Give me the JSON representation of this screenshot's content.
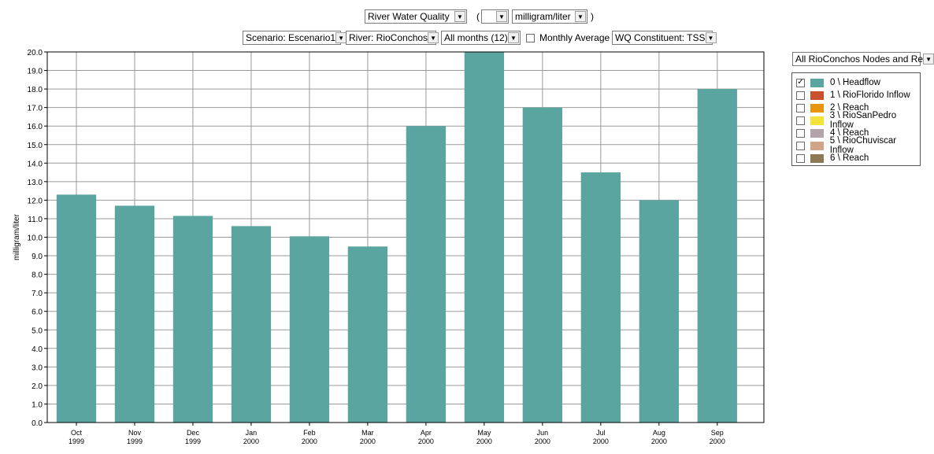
{
  "header": {
    "view_select": "River Water Quality",
    "paren_open": "(",
    "blank_select": "",
    "unit_select": "milligram/liter",
    "paren_close": ")"
  },
  "filters": {
    "scenario": "Scenario: Escenario1",
    "river": "River: RioConchos",
    "months": "All months (12)",
    "monthly_average_label": "Monthly Average",
    "constituent": "WQ Constituent: TSS"
  },
  "node_select": "All RioConchos Nodes and Re",
  "legend": [
    {
      "label": "0 \\ Headflow",
      "color": "#5ba5a0",
      "checked": true
    },
    {
      "label": "1 \\ RioFlorido Inflow",
      "color": "#c9512e",
      "checked": false
    },
    {
      "label": "2 \\ Reach",
      "color": "#e8940c",
      "checked": false
    },
    {
      "label": "3 \\ RioSanPedro Inflow",
      "color": "#f2e23a",
      "checked": false
    },
    {
      "label": "4 \\ Reach",
      "color": "#b3a3ab",
      "checked": false
    },
    {
      "label": "5 \\ RioChuviscar Inflow",
      "color": "#cfa489",
      "checked": false
    },
    {
      "label": "6 \\ Reach",
      "color": "#8b7a55",
      "checked": false
    }
  ],
  "chart_data": {
    "type": "bar",
    "ylabel": "milligram/liter",
    "xlabel": "",
    "ylim": [
      0,
      20
    ],
    "grid": true,
    "categories": [
      [
        "Oct",
        "1999"
      ],
      [
        "Nov",
        "1999"
      ],
      [
        "Dec",
        "1999"
      ],
      [
        "Jan",
        "2000"
      ],
      [
        "Feb",
        "2000"
      ],
      [
        "Mar",
        "2000"
      ],
      [
        "Apr",
        "2000"
      ],
      [
        "May",
        "2000"
      ],
      [
        "Jun",
        "2000"
      ],
      [
        "Jul",
        "2000"
      ],
      [
        "Aug",
        "2000"
      ],
      [
        "Sep",
        "2000"
      ]
    ],
    "series": [
      {
        "name": "0 \\ Headflow",
        "color": "#5ba5a0",
        "values": [
          12.3,
          11.7,
          11.15,
          10.6,
          10.05,
          9.5,
          16.0,
          20.0,
          17.0,
          13.5,
          12.0,
          18.0
        ]
      }
    ],
    "y_ticks": [
      "0.0",
      "1.0",
      "2.0",
      "3.0",
      "4.0",
      "5.0",
      "6.0",
      "7.0",
      "8.0",
      "9.0",
      "10.0",
      "11.0",
      "12.0",
      "13.0",
      "14.0",
      "15.0",
      "16.0",
      "17.0",
      "18.0",
      "19.0",
      "20.0"
    ]
  }
}
